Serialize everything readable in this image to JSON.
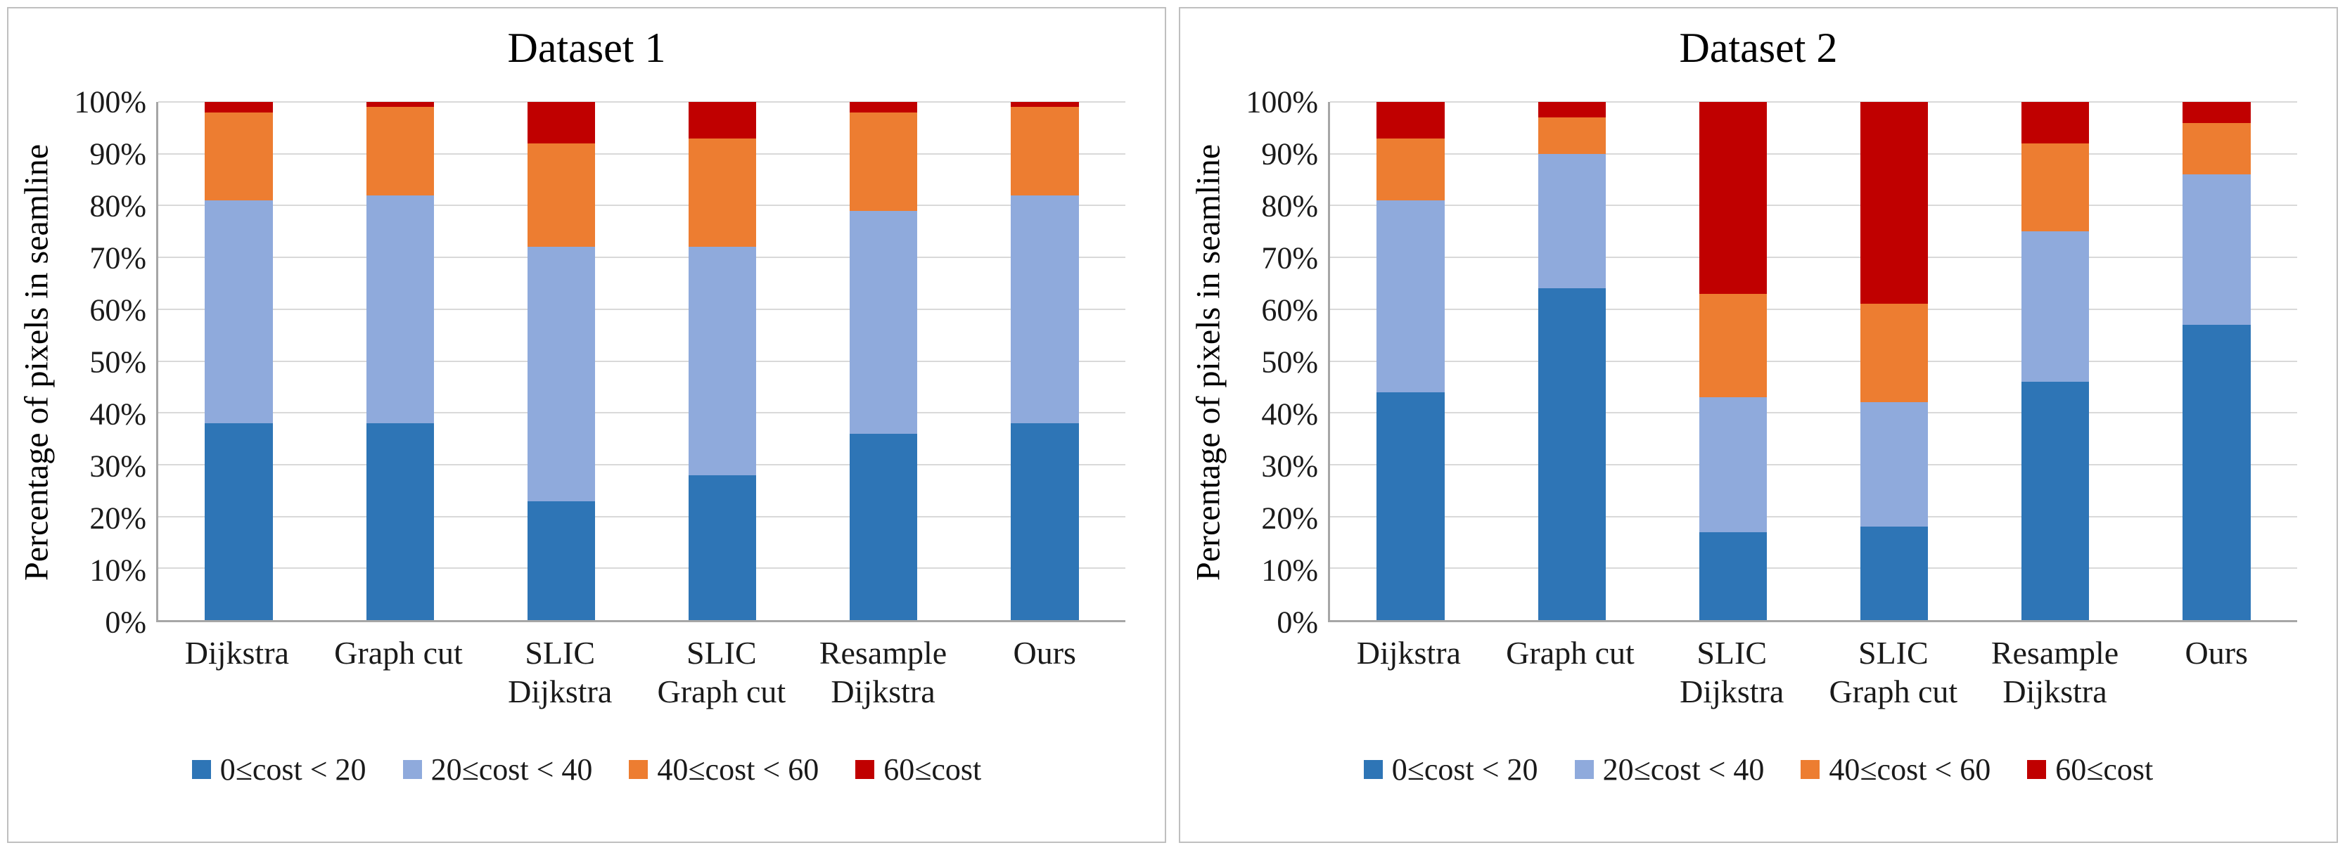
{
  "chart_data": [
    {
      "type": "bar",
      "stacked": true,
      "title": "Dataset 1",
      "ylabel": "Percentage of pixels in seamline",
      "ylim": [
        0,
        100
      ],
      "ytick_step": 10,
      "ytick_suffix": "%",
      "grid": true,
      "legend_position": "bottom",
      "categories": [
        "Dijkstra",
        "Graph cut",
        "SLIC\nDijkstra",
        "SLIC\nGraph cut",
        "Resample\nDijkstra",
        "Ours"
      ],
      "series": [
        {
          "name": "0≤cost < 20",
          "color": "#2E75B6",
          "values": [
            38,
            38,
            23,
            28,
            36,
            38
          ]
        },
        {
          "name": "20≤cost < 40",
          "color": "#8FAADC",
          "values": [
            43,
            44,
            49,
            44,
            43,
            44
          ]
        },
        {
          "name": "40≤cost < 60",
          "color": "#ED7D31",
          "values": [
            17,
            17,
            20,
            21,
            19,
            17
          ]
        },
        {
          "name": "60≤cost",
          "color": "#C00000",
          "values": [
            2,
            1,
            8,
            7,
            2,
            1
          ]
        }
      ]
    },
    {
      "type": "bar",
      "stacked": true,
      "title": "Dataset 2",
      "ylabel": "Percentage of pixels in seamline",
      "ylim": [
        0,
        100
      ],
      "ytick_step": 10,
      "ytick_suffix": "%",
      "grid": true,
      "legend_position": "bottom",
      "categories": [
        "Dijkstra",
        "Graph cut",
        "SLIC\nDijkstra",
        "SLIC\nGraph cut",
        "Resample\nDijkstra",
        "Ours"
      ],
      "series": [
        {
          "name": "0≤cost < 20",
          "color": "#2E75B6",
          "values": [
            44,
            64,
            17,
            18,
            46,
            57
          ]
        },
        {
          "name": "20≤cost < 40",
          "color": "#8FAADC",
          "values": [
            37,
            26,
            26,
            24,
            29,
            29
          ]
        },
        {
          "name": "40≤cost < 60",
          "color": "#ED7D31",
          "values": [
            12,
            7,
            20,
            19,
            17,
            10
          ]
        },
        {
          "name": "60≤cost",
          "color": "#C00000",
          "values": [
            7,
            3,
            37,
            39,
            8,
            4
          ]
        }
      ]
    }
  ],
  "colors": {
    "gridline": "#D9D9D9",
    "axis": "#A6A6A6",
    "panel_border": "#BFBFBF"
  }
}
